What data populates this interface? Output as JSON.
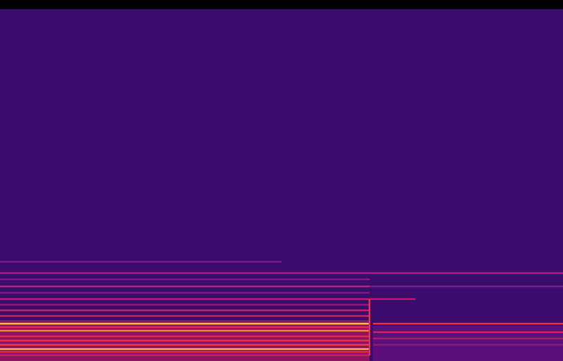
{
  "chart_data": {
    "type": "spectrogram",
    "xlim": [
      0,
      800
    ],
    "ylim": [
      0,
      513
    ],
    "tick_labels": false,
    "grid": false,
    "series": [
      {
        "type": "area",
        "color": "#3a0c6c",
        "x": [
          0,
          800
        ],
        "values": [
          500,
          500
        ]
      },
      {
        "type": "area",
        "color": "#8c1560",
        "x": [
          0,
          525
        ],
        "values": [
          58,
          58
        ]
      },
      {
        "type": "area",
        "color": "#5a1078",
        "x": [
          530,
          800
        ],
        "values": [
          50,
          50
        ]
      },
      {
        "type": "line",
        "color": "#7a1a86",
        "x": [
          0,
          400
        ],
        "values": [
          141,
          141
        ]
      },
      {
        "type": "line",
        "color": "#a0207a",
        "x": [
          0,
          800
        ],
        "values": [
          125,
          125
        ]
      },
      {
        "type": "line",
        "color": "#7a1a86",
        "x": [
          0,
          525
        ],
        "values": [
          116,
          116
        ]
      },
      {
        "type": "line",
        "color": "#b8206e",
        "x": [
          0,
          525
        ],
        "values": [
          106,
          106
        ]
      },
      {
        "type": "line",
        "color": "#7e1a84",
        "x": [
          525,
          800
        ],
        "values": [
          106,
          106
        ]
      },
      {
        "type": "line",
        "color": "#7a1a86",
        "x": [
          0,
          525
        ],
        "values": [
          97,
          97
        ]
      },
      {
        "type": "line",
        "color": "#b01e70",
        "x": [
          0,
          590
        ],
        "values": [
          88,
          88
        ]
      },
      {
        "type": "line",
        "color": "#8a1a80",
        "x": [
          0,
          525
        ],
        "values": [
          80,
          80
        ]
      },
      {
        "type": "line",
        "color": "#c02268",
        "x": [
          0,
          525
        ],
        "values": [
          72,
          72
        ]
      },
      {
        "type": "line",
        "color": "#c82462",
        "x": [
          0,
          525
        ],
        "values": [
          64,
          64
        ]
      },
      {
        "type": "line",
        "color": "#ffc040",
        "x": [
          0,
          525
        ],
        "values": [
          53,
          53
        ]
      },
      {
        "type": "line",
        "color": "#e8304c",
        "x": [
          530,
          800
        ],
        "values": [
          53,
          53
        ]
      },
      {
        "type": "line",
        "color": "#e02850",
        "x": [
          0,
          525
        ],
        "values": [
          48,
          48
        ]
      },
      {
        "type": "line",
        "color": "#ff7a30",
        "x": [
          0,
          525
        ],
        "values": [
          43,
          43
        ]
      },
      {
        "type": "line",
        "color": "#c82462",
        "x": [
          530,
          800
        ],
        "values": [
          41,
          41
        ]
      },
      {
        "type": "line",
        "color": "#e02850",
        "x": [
          0,
          525
        ],
        "values": [
          35,
          35
        ]
      },
      {
        "type": "line",
        "color": "#a01e74",
        "x": [
          530,
          800
        ],
        "values": [
          32,
          32
        ]
      },
      {
        "type": "line",
        "color": "#e8304c",
        "x": [
          0,
          525
        ],
        "values": [
          29,
          29
        ]
      },
      {
        "type": "line",
        "color": "#f03a48",
        "x": [
          0,
          525
        ],
        "values": [
          23,
          23
        ]
      },
      {
        "type": "line",
        "color": "#8a1a80",
        "x": [
          530,
          800
        ],
        "values": [
          23,
          23
        ]
      },
      {
        "type": "line",
        "color": "#ffb040",
        "x": [
          0,
          525
        ],
        "values": [
          17,
          17
        ]
      },
      {
        "type": "line",
        "color": "#e02850",
        "x": [
          0,
          525
        ],
        "values": [
          13,
          13
        ]
      },
      {
        "type": "line",
        "color": "#c02268",
        "x": [
          0,
          525
        ],
        "values": [
          8,
          8
        ]
      },
      {
        "type": "line",
        "color": "#e8304c",
        "x": [
          525,
          525
        ],
        "values": [
          8,
          88
        ]
      }
    ]
  }
}
